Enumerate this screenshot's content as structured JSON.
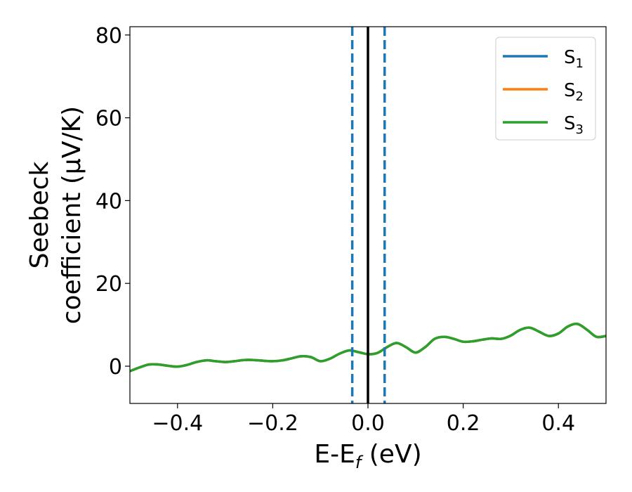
{
  "chart_data": {
    "type": "line",
    "title": "",
    "xlabel_main": "E-E",
    "xlabel_sub": "f",
    "xlabel_unit": " (eV)",
    "ylabel_line1": "Seebeck",
    "ylabel_line2": "coefficient  (μV/K)",
    "xlim": [
      -0.5,
      0.5
    ],
    "ylim": [
      -9,
      82
    ],
    "x_ticks": [
      -0.4,
      -0.2,
      0.0,
      0.2,
      0.4
    ],
    "x_tick_labels": [
      "−0.4",
      "−0.2",
      "0.0",
      "0.2",
      "0.4"
    ],
    "y_ticks": [
      0,
      20,
      40,
      60,
      80
    ],
    "y_tick_labels": [
      "0",
      "20",
      "40",
      "60",
      "80"
    ],
    "grid": false,
    "legend_position": "top-right",
    "legend": [
      {
        "base": "S",
        "sub": "1",
        "color": "#1f77b4"
      },
      {
        "base": "S",
        "sub": "2",
        "color": "#ff7f0e"
      },
      {
        "base": "S",
        "sub": "3",
        "color": "#2ca02c"
      }
    ],
    "vertical_lines": [
      {
        "x": -0.033,
        "style": "dashed",
        "color": "#1f77b4"
      },
      {
        "x": 0.0,
        "style": "solid",
        "color": "#000000"
      },
      {
        "x": 0.035,
        "style": "dashed",
        "color": "#1f77b4"
      }
    ],
    "x": [
      -0.5,
      -0.48,
      -0.46,
      -0.44,
      -0.42,
      -0.4,
      -0.38,
      -0.36,
      -0.34,
      -0.32,
      -0.3,
      -0.28,
      -0.26,
      -0.24,
      -0.22,
      -0.2,
      -0.18,
      -0.16,
      -0.14,
      -0.12,
      -0.1,
      -0.08,
      -0.06,
      -0.04,
      -0.02,
      0.0,
      0.02,
      0.04,
      0.06,
      0.08,
      0.1,
      0.12,
      0.14,
      0.16,
      0.18,
      0.2,
      0.22,
      0.24,
      0.26,
      0.28,
      0.3,
      0.32,
      0.34,
      0.36,
      0.38,
      0.4,
      0.42,
      0.44,
      0.46,
      0.48,
      0.5
    ],
    "series": [
      {
        "color": "#1f77b4",
        "values": [
          -1.2,
          -0.3,
          0.4,
          0.4,
          0.1,
          -0.1,
          0.3,
          1.0,
          1.4,
          1.2,
          1.0,
          1.2,
          1.5,
          1.5,
          1.3,
          1.2,
          1.4,
          1.9,
          2.4,
          2.2,
          1.2,
          1.8,
          3.0,
          3.8,
          3.4,
          2.9,
          3.2,
          4.6,
          5.6,
          4.6,
          3.3,
          4.6,
          6.6,
          7.1,
          6.6,
          5.9,
          6.0,
          6.4,
          6.7,
          6.6,
          7.4,
          8.8,
          9.3,
          8.3,
          7.3,
          7.9,
          9.6,
          10.2,
          8.8,
          7.1,
          7.3
        ]
      },
      {
        "color": "#ff7f0e",
        "values": [
          -1.2,
          -0.3,
          0.4,
          0.4,
          0.1,
          -0.1,
          0.3,
          1.0,
          1.4,
          1.2,
          1.0,
          1.2,
          1.5,
          1.5,
          1.3,
          1.2,
          1.4,
          1.9,
          2.4,
          2.2,
          1.2,
          1.8,
          3.0,
          3.8,
          3.4,
          2.9,
          3.2,
          4.6,
          5.6,
          4.6,
          3.3,
          4.6,
          6.6,
          7.1,
          6.6,
          5.9,
          6.0,
          6.4,
          6.7,
          6.6,
          7.4,
          8.8,
          9.3,
          8.3,
          7.3,
          7.9,
          9.6,
          10.2,
          8.8,
          7.1,
          7.3
        ]
      },
      {
        "color": "#2ca02c",
        "values": [
          -1.2,
          -0.3,
          0.4,
          0.4,
          0.1,
          -0.1,
          0.3,
          1.0,
          1.4,
          1.2,
          1.0,
          1.2,
          1.5,
          1.5,
          1.3,
          1.2,
          1.4,
          1.9,
          2.4,
          2.2,
          1.2,
          1.8,
          3.0,
          3.8,
          3.4,
          2.9,
          3.2,
          4.6,
          5.6,
          4.6,
          3.3,
          4.6,
          6.6,
          7.1,
          6.6,
          5.9,
          6.0,
          6.4,
          6.7,
          6.6,
          7.4,
          8.8,
          9.3,
          8.3,
          7.3,
          7.9,
          9.6,
          10.2,
          8.8,
          7.1,
          7.3
        ]
      }
    ]
  }
}
